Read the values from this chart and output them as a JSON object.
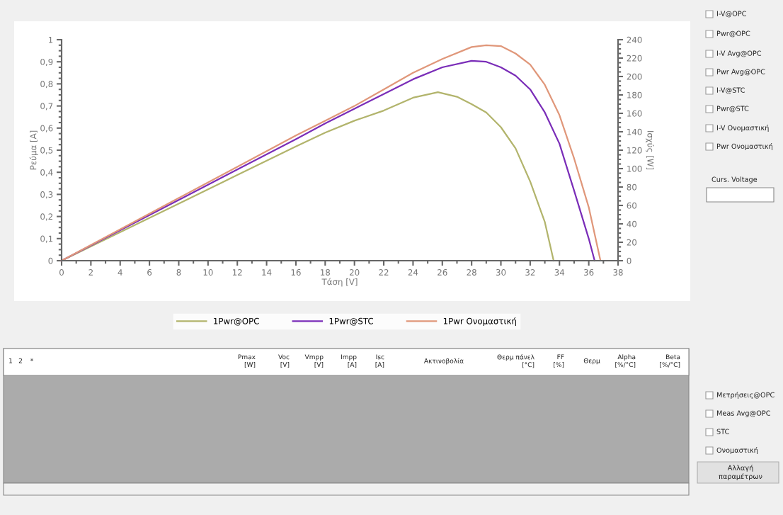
{
  "chart_data": {
    "type": "line",
    "xlabel": "Τάση [V]",
    "ylabel": "Ρεύμα [A]",
    "y2label": "Ισχύς [W]",
    "xlim": [
      0,
      38
    ],
    "xticks": [
      0,
      2,
      4,
      6,
      8,
      10,
      12,
      14,
      16,
      18,
      20,
      22,
      24,
      26,
      28,
      30,
      32,
      34,
      36,
      38
    ],
    "ylim": [
      0,
      1
    ],
    "yticks": [
      0,
      {
        "value": 0.1,
        "label": "0,1"
      },
      {
        "value": 0.2,
        "label": "0,2"
      },
      {
        "value": 0.3,
        "label": "0,3"
      },
      {
        "value": 0.4,
        "label": "0,4"
      },
      {
        "value": 0.5,
        "label": "0,5"
      },
      {
        "value": 0.6,
        "label": "0,6"
      },
      {
        "value": 0.7,
        "label": "0,7"
      },
      {
        "value": 0.8,
        "label": "0,8"
      },
      {
        "value": 0.9,
        "label": "0,9"
      },
      1
    ],
    "y2lim": [
      0,
      240
    ],
    "y2ticks": [
      0,
      20,
      40,
      60,
      80,
      100,
      120,
      140,
      160,
      180,
      200,
      220,
      240
    ],
    "grid": false,
    "legend": "bottom",
    "marker": "none",
    "line_style": "solid",
    "series": [
      {
        "name": "1Pwr@OPC",
        "color": "#b2b46c",
        "axis": "y2",
        "x": [
          0,
          4,
          8,
          12,
          16,
          18,
          20,
          22,
          24,
          25.7,
          27,
          28,
          29,
          30,
          31,
          32,
          33,
          33.6
        ],
        "values": [
          0,
          31,
          62,
          93,
          124,
          139,
          152,
          163,
          177,
          183,
          178,
          170,
          161,
          145,
          122,
          86,
          42,
          0
        ]
      },
      {
        "name": "1Pwr@STC",
        "color": "#7a2db8",
        "axis": "y2",
        "x": [
          0,
          4,
          8,
          12,
          16,
          18,
          20,
          22,
          24,
          26,
          28,
          29,
          30,
          31,
          32,
          33,
          34,
          35,
          36,
          36.4
        ],
        "values": [
          0,
          33,
          66,
          99,
          132,
          149,
          165,
          181,
          197,
          210,
          217,
          216,
          210,
          201,
          186,
          161,
          127,
          76,
          24,
          0
        ]
      },
      {
        "name": "1Pwr Ονομαστική",
        "color": "#e0977a",
        "axis": "y2",
        "x": [
          0,
          4,
          8,
          12,
          16,
          18,
          20,
          22,
          24,
          26,
          28,
          29,
          30,
          31,
          32,
          33,
          34,
          35,
          36,
          36.8
        ],
        "values": [
          0,
          34,
          68,
          102,
          136,
          152,
          168,
          186,
          204,
          219,
          232,
          234,
          233,
          225,
          213,
          191,
          158,
          111,
          58,
          0
        ]
      }
    ],
    "annotations": [
      "I-V@OPC",
      "Pwr@OPC",
      "I-V Avg@OPC",
      "Pwr Avg@OPC",
      "I-V@STC",
      "Pwr@STC",
      "I-V Ονομαστική",
      "Pwr Ονομαστική",
      "Curs. Voltage",
      "1",
      "2",
      "*",
      "Pmax\n[W]",
      "Voc\n[V]",
      "Vmpp\n[V]",
      "Impp\n[A]",
      "Isc\n[A]",
      "Ακτινοβολία",
      "Θερμ πάνελ\n[°C]",
      "FF\n[%]",
      "Θερμ",
      "Alpha\n[%/°C]",
      "Beta\n[%/°C]",
      "Μετρήσεις@OPC",
      "Meas Avg@OPC",
      "STC",
      "Ονομαστική",
      "Αλλαγή\nπαραμέτρων"
    ]
  }
}
